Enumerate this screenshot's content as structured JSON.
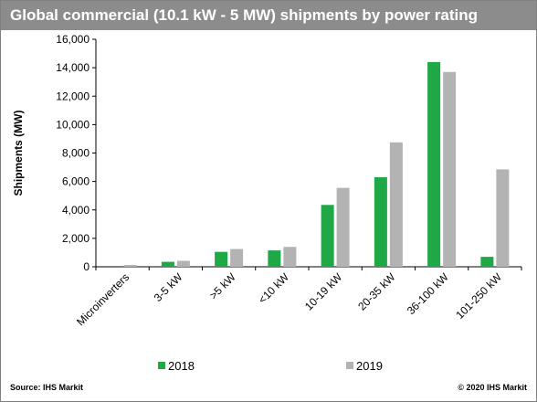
{
  "title": "Global commercial (10.1 kW - 5 MW) shipments by power rating",
  "source": "Source: IHS Markit",
  "copyright": "© 2020 IHS Markit",
  "colors": {
    "title_bar": "#8c8c8c",
    "series_2018": "#1fa845",
    "series_2019": "#b3b3b3"
  },
  "chart_data": {
    "type": "bar",
    "title": "Global commercial (10.1 kW - 5 MW) shipments by power rating",
    "xlabel": "",
    "ylabel": "Shipments (MW)",
    "ylim": [
      0,
      16000
    ],
    "yticks": [
      0,
      2000,
      4000,
      6000,
      8000,
      10000,
      12000,
      14000,
      16000
    ],
    "ytick_labels": [
      "0",
      "2,000",
      "4,000",
      "6,000",
      "8,000",
      "10,000",
      "12,000",
      "14,000",
      "16,000"
    ],
    "categories": [
      "Microinverters",
      "3-5 kW",
      ">5 kW",
      "<10 kW",
      "10-19 kW",
      "20-35 kW",
      "36-100 kW",
      "101-250 kW"
    ],
    "series": [
      {
        "name": "2018",
        "color": "#1fa845",
        "values": [
          60,
          350,
          1050,
          1150,
          4350,
          6300,
          14400,
          700
        ]
      },
      {
        "name": "2019",
        "color": "#b3b3b3",
        "values": [
          130,
          420,
          1250,
          1400,
          5550,
          8750,
          13700,
          6850
        ]
      }
    ],
    "grid": false,
    "legend_position": "bottom"
  }
}
